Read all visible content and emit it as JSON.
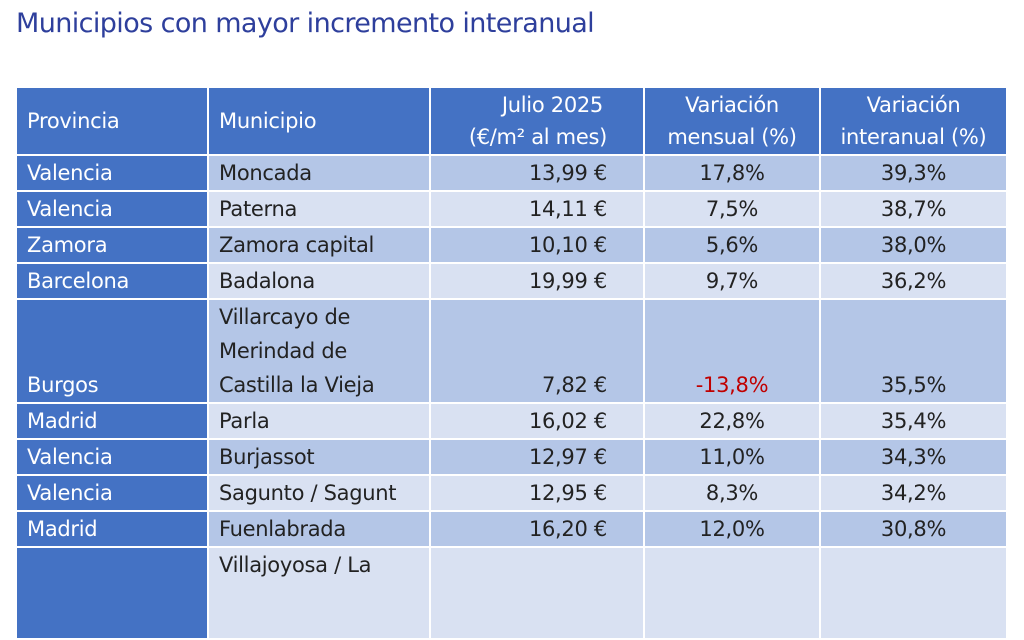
{
  "title": "Municipios con mayor incremento interanual",
  "table": {
    "headers": [
      "Provincia",
      "Municipio",
      "Julio 2025 (€/m² al mes)",
      "Variación mensual (%)",
      "Variación interanual (%)"
    ],
    "header_lines": {
      "precio": [
        "Julio 2025",
        "(€/m² al mes)"
      ],
      "mensual": [
        "Variación",
        "mensual (%)"
      ],
      "interanual": [
        "Variación",
        "interanual (%)"
      ]
    },
    "rows": [
      {
        "provincia": "Valencia",
        "municipio": "Moncada",
        "precio": "13,99 €",
        "mensual": "17,8%",
        "interanual": "39,3%"
      },
      {
        "provincia": "Valencia",
        "municipio": "Paterna",
        "precio": "14,11 €",
        "mensual": "7,5%",
        "interanual": "38,7%"
      },
      {
        "provincia": "Zamora",
        "municipio": "Zamora capital",
        "precio": "10,10 €",
        "mensual": "5,6%",
        "interanual": "38,0%"
      },
      {
        "provincia": "Barcelona",
        "municipio": "Badalona",
        "precio": "19,99 €",
        "mensual": "9,7%",
        "interanual": "36,2%"
      },
      {
        "provincia": "Burgos",
        "municipio": "Villarcayo de Merindad de Castilla la Vieja",
        "precio": "7,82 €",
        "mensual": "-13,8%",
        "interanual": "35,5%"
      },
      {
        "provincia": "Madrid",
        "municipio": "Parla",
        "precio": "16,02 €",
        "mensual": "22,8%",
        "interanual": "35,4%"
      },
      {
        "provincia": "Valencia",
        "municipio": "Burjassot",
        "precio": "12,97 €",
        "mensual": "11,0%",
        "interanual": "34,3%"
      },
      {
        "provincia": "Valencia",
        "municipio": "Sagunto / Sagunt",
        "precio": "12,95 €",
        "mensual": "8,3%",
        "interanual": "34,2%"
      },
      {
        "provincia": "Madrid",
        "municipio": "Fuenlabrada",
        "precio": "16,20 €",
        "mensual": "12,0%",
        "interanual": "30,8%"
      },
      {
        "provincia": "",
        "municipio": "Villajoyosa / La",
        "precio": "",
        "mensual": "",
        "interanual": ""
      }
    ]
  },
  "colors": {
    "header": "#4472C4",
    "row_odd": "#B4C6E7",
    "row_even": "#D9E1F2",
    "negative": "#C00000",
    "title": "#2E3F9C"
  }
}
